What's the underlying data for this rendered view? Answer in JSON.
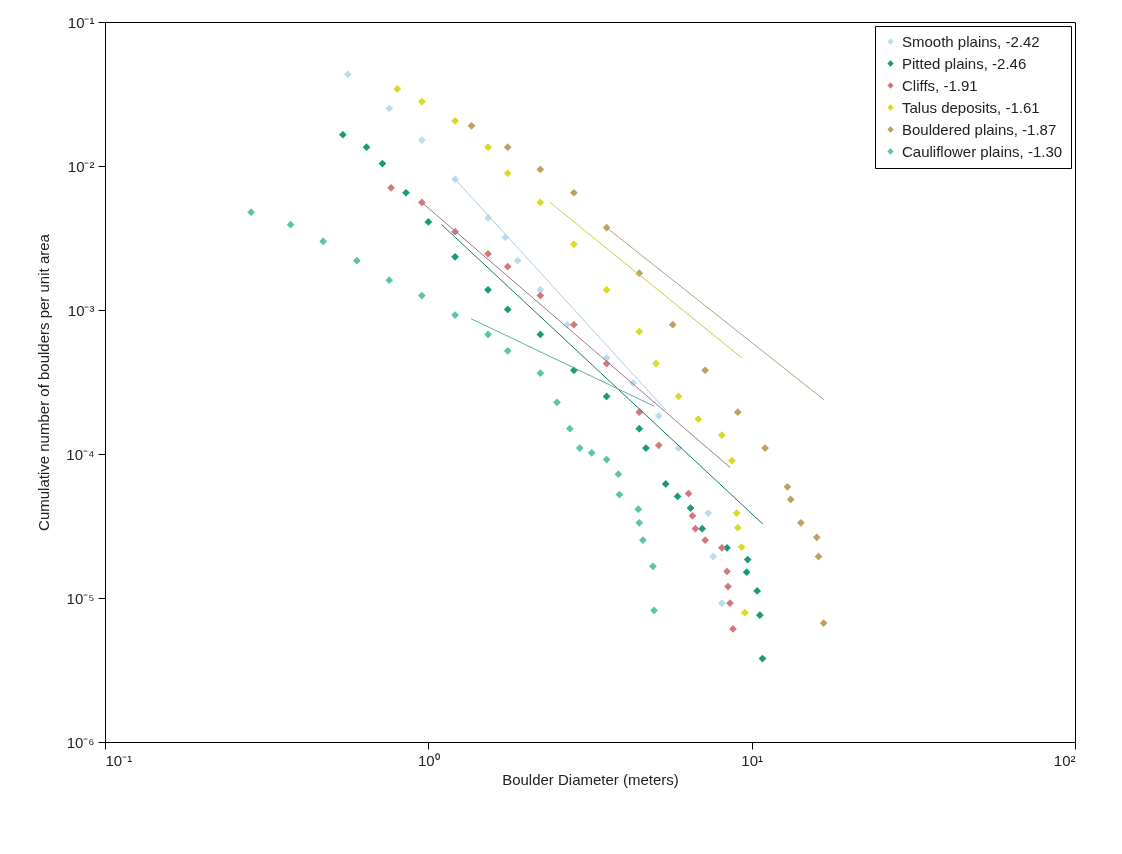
{
  "chart_data": {
    "type": "scatter",
    "xlabel": "Boulder Diameter (meters)",
    "ylabel": "Cumulative number of boulders per unit area",
    "log": "xy",
    "marker": "diamond",
    "legend": "top right",
    "xlim": [
      0.1,
      100
    ],
    "ylim": [
      1e-06,
      0.1
    ],
    "xticks": [
      {
        "value": 0.1,
        "label": "10⁻¹"
      },
      {
        "value": 1,
        "label": "10⁰"
      },
      {
        "value": 10,
        "label": "10¹"
      },
      {
        "value": 100,
        "label": "10²"
      }
    ],
    "yticks": [
      {
        "value": 1e-06,
        "label": "10⁻⁶"
      },
      {
        "value": 1e-05,
        "label": "10⁻⁵"
      },
      {
        "value": 0.0001,
        "label": "10⁻⁴"
      },
      {
        "value": 0.001,
        "label": "10⁻³"
      },
      {
        "value": 0.01,
        "label": "10⁻²"
      },
      {
        "value": 0.1,
        "label": "10⁻¹"
      }
    ],
    "series": [
      {
        "name": "Smooth plains, -2.42",
        "color": "#b9dcf0",
        "x": [
          0.563,
          0.757,
          0.955,
          1.21,
          1.53,
          1.73,
          1.89,
          2.22,
          2.69,
          3.56,
          4.3,
          5.16,
          5.94,
          7.34,
          7.6,
          8.09
        ],
        "values": [
          0.0433,
          0.0251,
          0.0151,
          0.0081,
          0.00436,
          0.00319,
          0.0022,
          0.00138,
          0.00079,
          0.000466,
          0.000311,
          0.000184,
          0.00011,
          3.89e-05,
          1.94e-05,
          9.2e-06
        ]
      },
      {
        "name": "Pitted plains, -2.46",
        "color": "#1a9a7a",
        "x": [
          0.544,
          0.644,
          0.721,
          0.853,
          1.0,
          1.21,
          1.53,
          1.76,
          2.22,
          2.82,
          3.56,
          4.49,
          4.71,
          5.42,
          5.9,
          6.47,
          7.03,
          8.39,
          9.72,
          9.65,
          10.4,
          10.6,
          10.8
        ],
        "values": [
          0.0165,
          0.0135,
          0.0104,
          0.00652,
          0.00409,
          0.00234,
          0.00138,
          0.00101,
          0.000676,
          0.000381,
          0.000251,
          0.00015,
          0.00011,
          6.2e-05,
          5.07e-05,
          4.21e-05,
          3.03e-05,
          2.23e-05,
          1.85e-05,
          1.51e-05,
          1.12e-05,
          7.6e-06,
          3.8e-06
        ]
      },
      {
        "name": "Cliffs, -1.91",
        "color": "#d07a80",
        "x": [
          0.767,
          0.955,
          1.21,
          1.53,
          1.76,
          2.22,
          2.82,
          3.56,
          4.49,
          5.16,
          6.38,
          6.56,
          6.7,
          7.18,
          8.09,
          8.39,
          8.45,
          8.57,
          8.75
        ],
        "values": [
          0.00705,
          0.00558,
          0.0035,
          0.00245,
          0.002,
          0.00126,
          0.00079,
          0.000425,
          0.000195,
          0.000115,
          5.31e-05,
          3.72e-05,
          3.03e-05,
          2.52e-05,
          2.23e-05,
          1.53e-05,
          1.2e-05,
          9.2e-06,
          6.1e-06
        ]
      },
      {
        "name": "Talus deposits, -1.61",
        "color": "#d8dc20",
        "x": [
          0.802,
          0.955,
          1.21,
          1.53,
          1.76,
          2.22,
          2.82,
          3.56,
          4.49,
          5.06,
          5.94,
          6.84,
          8.09,
          8.69,
          8.99,
          9.06,
          9.31,
          9.52
        ],
        "values": [
          0.0343,
          0.028,
          0.0206,
          0.0135,
          0.0089,
          0.00558,
          0.00286,
          0.00138,
          0.000708,
          0.000425,
          0.000251,
          0.000175,
          0.000135,
          9e-05,
          3.89e-05,
          3.08e-05,
          2.26e-05,
          7.9e-06
        ]
      },
      {
        "name": "Bouldered plains, -1.87",
        "color": "#c0a060",
        "x": [
          1.36,
          1.76,
          2.22,
          2.82,
          3.56,
          4.49,
          5.7,
          7.18,
          9.06,
          11.0,
          12.9,
          13.2,
          14.2,
          15.9,
          16.1,
          16.7
        ],
        "values": [
          0.019,
          0.0135,
          0.00946,
          0.00652,
          0.00373,
          0.0018,
          0.00079,
          0.000381,
          0.000195,
          0.00011,
          5.92e-05,
          4.84e-05,
          3.33e-05,
          2.64e-05,
          1.94e-05,
          6.7e-06
        ]
      },
      {
        "name": "Cauliflower plains, -1.30",
        "color": "#5cc4a8",
        "x": [
          0.283,
          0.375,
          0.473,
          0.601,
          0.757,
          0.955,
          1.21,
          1.53,
          1.76,
          2.22,
          2.5,
          2.74,
          2.94,
          3.2,
          3.56,
          3.87,
          3.9,
          4.46,
          4.49,
          4.61,
          4.95,
          4.99
        ],
        "values": [
          0.00478,
          0.00391,
          0.003,
          0.0022,
          0.00161,
          0.00126,
          0.000923,
          0.000676,
          0.00052,
          0.000364,
          0.000228,
          0.00015,
          0.00011,
          0.000102,
          9.14e-05,
          7.24e-05,
          5.23e-05,
          4.14e-05,
          3.33e-05,
          2.52e-05,
          1.66e-05,
          8.2e-06
        ]
      },
      {
        "type": "line",
        "marker": "none",
        "color": "#a8cce0",
        "x": [
          1.21,
          5.42
        ],
        "values": [
          0.0081,
          0.000202
        ]
      },
      {
        "type": "line",
        "marker": "none",
        "color": "#1a7a60",
        "x": [
          1.1,
          10.8
        ],
        "values": [
          0.00391,
          3.28e-05
        ]
      },
      {
        "type": "line",
        "marker": "none",
        "color": "#a07890",
        "x": [
          0.955,
          8.57
        ],
        "values": [
          0.00558,
          8.07e-05
        ]
      },
      {
        "type": "line",
        "marker": "none",
        "color": "#c8d040",
        "x": [
          2.38,
          9.31
        ],
        "values": [
          0.00558,
          0.000466
        ]
      },
      {
        "type": "line",
        "marker": "none",
        "color": "#b0a080",
        "x": [
          3.56,
          16.7
        ],
        "values": [
          0.00373,
          0.000239
        ]
      },
      {
        "type": "line",
        "marker": "none",
        "color": "#60b0a0",
        "x": [
          1.36,
          4.99
        ],
        "values": [
          0.000867,
          0.000215
        ]
      }
    ]
  }
}
